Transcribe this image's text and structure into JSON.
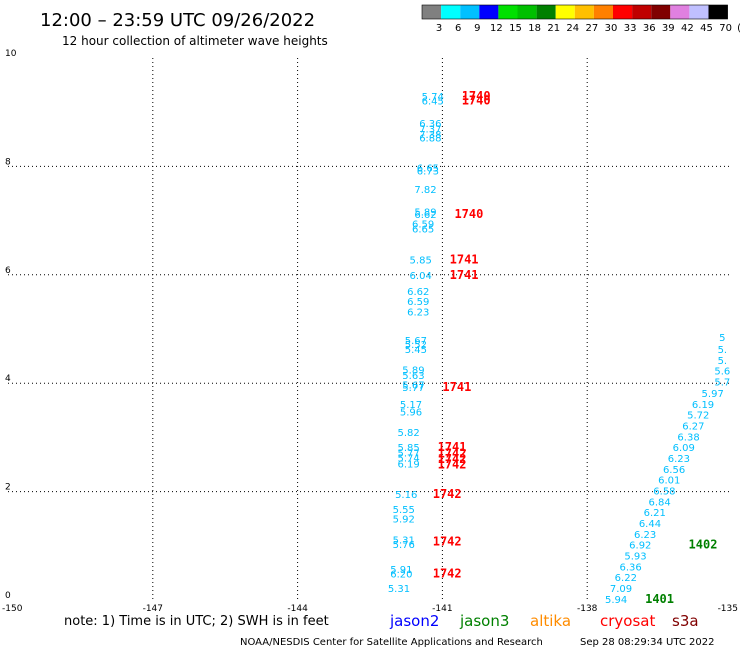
{
  "header": {
    "title": "12:00 – 23:59 UTC 09/26/2022",
    "subtitle": "12 hour collection of altimeter wave heights"
  },
  "colorbar": {
    "colors": [
      "#808080",
      "#00ffff",
      "#00c0ff",
      "#0000ff",
      "#00e000",
      "#00c000",
      "#008000",
      "#ffff00",
      "#ffc000",
      "#ff8000",
      "#ff0000",
      "#c00000",
      "#800000",
      "#e080e0",
      "#c0c0ff",
      "#000000"
    ],
    "labels": [
      "3",
      "6",
      "9",
      "12",
      "15",
      "18",
      "21",
      "24",
      "27",
      "30",
      "33",
      "36",
      "39",
      "42",
      "45",
      "70",
      "(ft)"
    ]
  },
  "footer": {
    "note": "note:  1) Time is in UTC; 2) SWH is in feet",
    "satellites": [
      {
        "name": "jason2",
        "color": "#0000ff"
      },
      {
        "name": "jason3",
        "color": "#008000"
      },
      {
        "name": "altika",
        "color": "#ff8c00"
      },
      {
        "name": "cryosat",
        "color": "#ff0000"
      },
      {
        "name": "s3a",
        "color": "#800000"
      }
    ],
    "credit": "NOAA/NESDIS Center for Satellite Applications and Research",
    "timestamp": "Sep 28 08:29:34 UTC 2022"
  },
  "chart_data": {
    "type": "scatter",
    "title": "12:00 – 23:59 UTC 09/26/2022",
    "subtitle": "12 hour collection of altimeter wave heights",
    "xlim": [
      -150,
      -135
    ],
    "ylim": [
      0,
      10
    ],
    "x_ticks": [
      "-150",
      "-147",
      "-144",
      "-141",
      "-138",
      "-135"
    ],
    "y_ticks": [
      "0",
      "2",
      "4",
      "6",
      "8",
      "10"
    ],
    "grid": true,
    "grid_x": [
      -147,
      -144,
      -141,
      -138
    ],
    "grid_y": [
      2,
      4,
      6,
      8
    ],
    "series": [
      {
        "name": "cyan wave heights (track 1)",
        "color": "#00bfff",
        "points": [
          {
            "x": -141.2,
            "y": 9.3,
            "label": "5.74"
          },
          {
            "x": -141.2,
            "y": 9.22,
            "label": "6.45"
          },
          {
            "x": -141.25,
            "y": 8.8,
            "label": "6.36"
          },
          {
            "x": -141.25,
            "y": 8.7,
            "label": "7.37"
          },
          {
            "x": -141.25,
            "y": 8.6,
            "label": "7.38"
          },
          {
            "x": -141.25,
            "y": 8.53,
            "label": "6.88"
          },
          {
            "x": -141.3,
            "y": 7.98,
            "label": "6.65"
          },
          {
            "x": -141.3,
            "y": 7.92,
            "label": "6.73"
          },
          {
            "x": -141.35,
            "y": 7.58,
            "label": "7.82"
          },
          {
            "x": -141.35,
            "y": 7.17,
            "label": "5.89"
          },
          {
            "x": -141.35,
            "y": 7.12,
            "label": "6.62"
          },
          {
            "x": -141.4,
            "y": 6.95,
            "label": "6.59"
          },
          {
            "x": -141.4,
            "y": 6.85,
            "label": "6.65"
          },
          {
            "x": -141.45,
            "y": 6.28,
            "label": "5.85"
          },
          {
            "x": -141.45,
            "y": 6.0,
            "label": "6.04"
          },
          {
            "x": -141.5,
            "y": 5.7,
            "label": "6.62"
          },
          {
            "x": -141.5,
            "y": 5.52,
            "label": "6.59"
          },
          {
            "x": -141.5,
            "y": 5.32,
            "label": "6.23"
          },
          {
            "x": -141.55,
            "y": 4.8,
            "label": "5.67"
          },
          {
            "x": -141.55,
            "y": 4.72,
            "label": "5.52"
          },
          {
            "x": -141.55,
            "y": 4.63,
            "label": "5.45"
          },
          {
            "x": -141.6,
            "y": 4.25,
            "label": "5.89"
          },
          {
            "x": -141.6,
            "y": 4.15,
            "label": "5.63"
          },
          {
            "x": -141.6,
            "y": 3.98,
            "label": "5.67"
          },
          {
            "x": -141.6,
            "y": 3.93,
            "label": "5.77"
          },
          {
            "x": -141.65,
            "y": 3.62,
            "label": "5.17"
          },
          {
            "x": -141.65,
            "y": 3.48,
            "label": "5.96"
          },
          {
            "x": -141.7,
            "y": 3.1,
            "label": "5.82"
          },
          {
            "x": -141.7,
            "y": 2.82,
            "label": "5.85"
          },
          {
            "x": -141.7,
            "y": 2.72,
            "label": "5.77"
          },
          {
            "x": -141.7,
            "y": 2.63,
            "label": "5.74"
          },
          {
            "x": -141.7,
            "y": 2.52,
            "label": "6.19"
          },
          {
            "x": -141.75,
            "y": 1.96,
            "label": "5.16"
          },
          {
            "x": -141.8,
            "y": 1.68,
            "label": "5.55"
          },
          {
            "x": -141.8,
            "y": 1.5,
            "label": "5.92"
          },
          {
            "x": -141.8,
            "y": 1.12,
            "label": "5.31"
          },
          {
            "x": -141.8,
            "y": 1.03,
            "label": "5.76"
          },
          {
            "x": -141.85,
            "y": 0.57,
            "label": "5.91"
          },
          {
            "x": -141.85,
            "y": 0.49,
            "label": "6.20"
          },
          {
            "x": -141.9,
            "y": 0.22,
            "label": "5.31"
          }
        ]
      },
      {
        "name": "cyan wave heights (track 2)",
        "color": "#00bfff",
        "points": [
          {
            "x": -135.2,
            "y": 4.85,
            "label": "5"
          },
          {
            "x": -135.2,
            "y": 4.63,
            "label": "5."
          },
          {
            "x": -135.2,
            "y": 4.43,
            "label": "5."
          },
          {
            "x": -135.2,
            "y": 4.23,
            "label": "5.6"
          },
          {
            "x": -135.2,
            "y": 4.03,
            "label": "5.7"
          },
          {
            "x": -135.4,
            "y": 3.82,
            "label": "5.97"
          },
          {
            "x": -135.6,
            "y": 3.62,
            "label": "6.19"
          },
          {
            "x": -135.7,
            "y": 3.42,
            "label": "5.72"
          },
          {
            "x": -135.8,
            "y": 3.22,
            "label": "6.27"
          },
          {
            "x": -135.9,
            "y": 3.02,
            "label": "6.38"
          },
          {
            "x": -136.0,
            "y": 2.82,
            "label": "6.09"
          },
          {
            "x": -136.1,
            "y": 2.62,
            "label": "6.23"
          },
          {
            "x": -136.2,
            "y": 2.42,
            "label": "6.56"
          },
          {
            "x": -136.3,
            "y": 2.22,
            "label": "6.01"
          },
          {
            "x": -136.4,
            "y": 2.02,
            "label": "6.58"
          },
          {
            "x": -136.5,
            "y": 1.82,
            "label": "6.84"
          },
          {
            "x": -136.6,
            "y": 1.62,
            "label": "6.21"
          },
          {
            "x": -136.7,
            "y": 1.42,
            "label": "6.44"
          },
          {
            "x": -136.8,
            "y": 1.22,
            "label": "6.23"
          },
          {
            "x": -136.9,
            "y": 1.02,
            "label": "6.92"
          },
          {
            "x": -137.0,
            "y": 0.82,
            "label": "5.93"
          },
          {
            "x": -137.1,
            "y": 0.62,
            "label": "6.36"
          },
          {
            "x": -137.2,
            "y": 0.42,
            "label": "6.22"
          },
          {
            "x": -137.3,
            "y": 0.22,
            "label": "7.09"
          },
          {
            "x": -137.4,
            "y": 0.02,
            "label": "5.94"
          }
        ]
      }
    ],
    "pass_labels": [
      {
        "x": -140.6,
        "y": 9.3,
        "label": "1740",
        "color": "#ff0000"
      },
      {
        "x": -140.6,
        "y": 9.22,
        "label": "1740",
        "color": "#ff0000"
      },
      {
        "x": -140.75,
        "y": 7.12,
        "label": "1740",
        "color": "#ff0000"
      },
      {
        "x": -140.85,
        "y": 6.28,
        "label": "1741",
        "color": "#ff0000"
      },
      {
        "x": -140.85,
        "y": 6.0,
        "label": "1741",
        "color": "#ff0000"
      },
      {
        "x": -141.0,
        "y": 3.93,
        "label": "1741",
        "color": "#ff0000"
      },
      {
        "x": -141.1,
        "y": 2.82,
        "label": "1741",
        "color": "#ff0000"
      },
      {
        "x": -141.1,
        "y": 2.7,
        "label": "1742",
        "color": "#ff0000"
      },
      {
        "x": -141.1,
        "y": 2.6,
        "label": "1742",
        "color": "#ff0000"
      },
      {
        "x": -141.1,
        "y": 2.5,
        "label": "1742",
        "color": "#ff0000"
      },
      {
        "x": -141.2,
        "y": 1.96,
        "label": "1742",
        "color": "#ff0000"
      },
      {
        "x": -141.2,
        "y": 1.08,
        "label": "1742",
        "color": "#ff0000"
      },
      {
        "x": -141.2,
        "y": 0.49,
        "label": "1742",
        "color": "#ff0000"
      },
      {
        "x": -135.9,
        "y": 1.02,
        "label": "1402",
        "color": "#008000"
      },
      {
        "x": -136.8,
        "y": 0.02,
        "label": "1401",
        "color": "#008000"
      }
    ]
  }
}
